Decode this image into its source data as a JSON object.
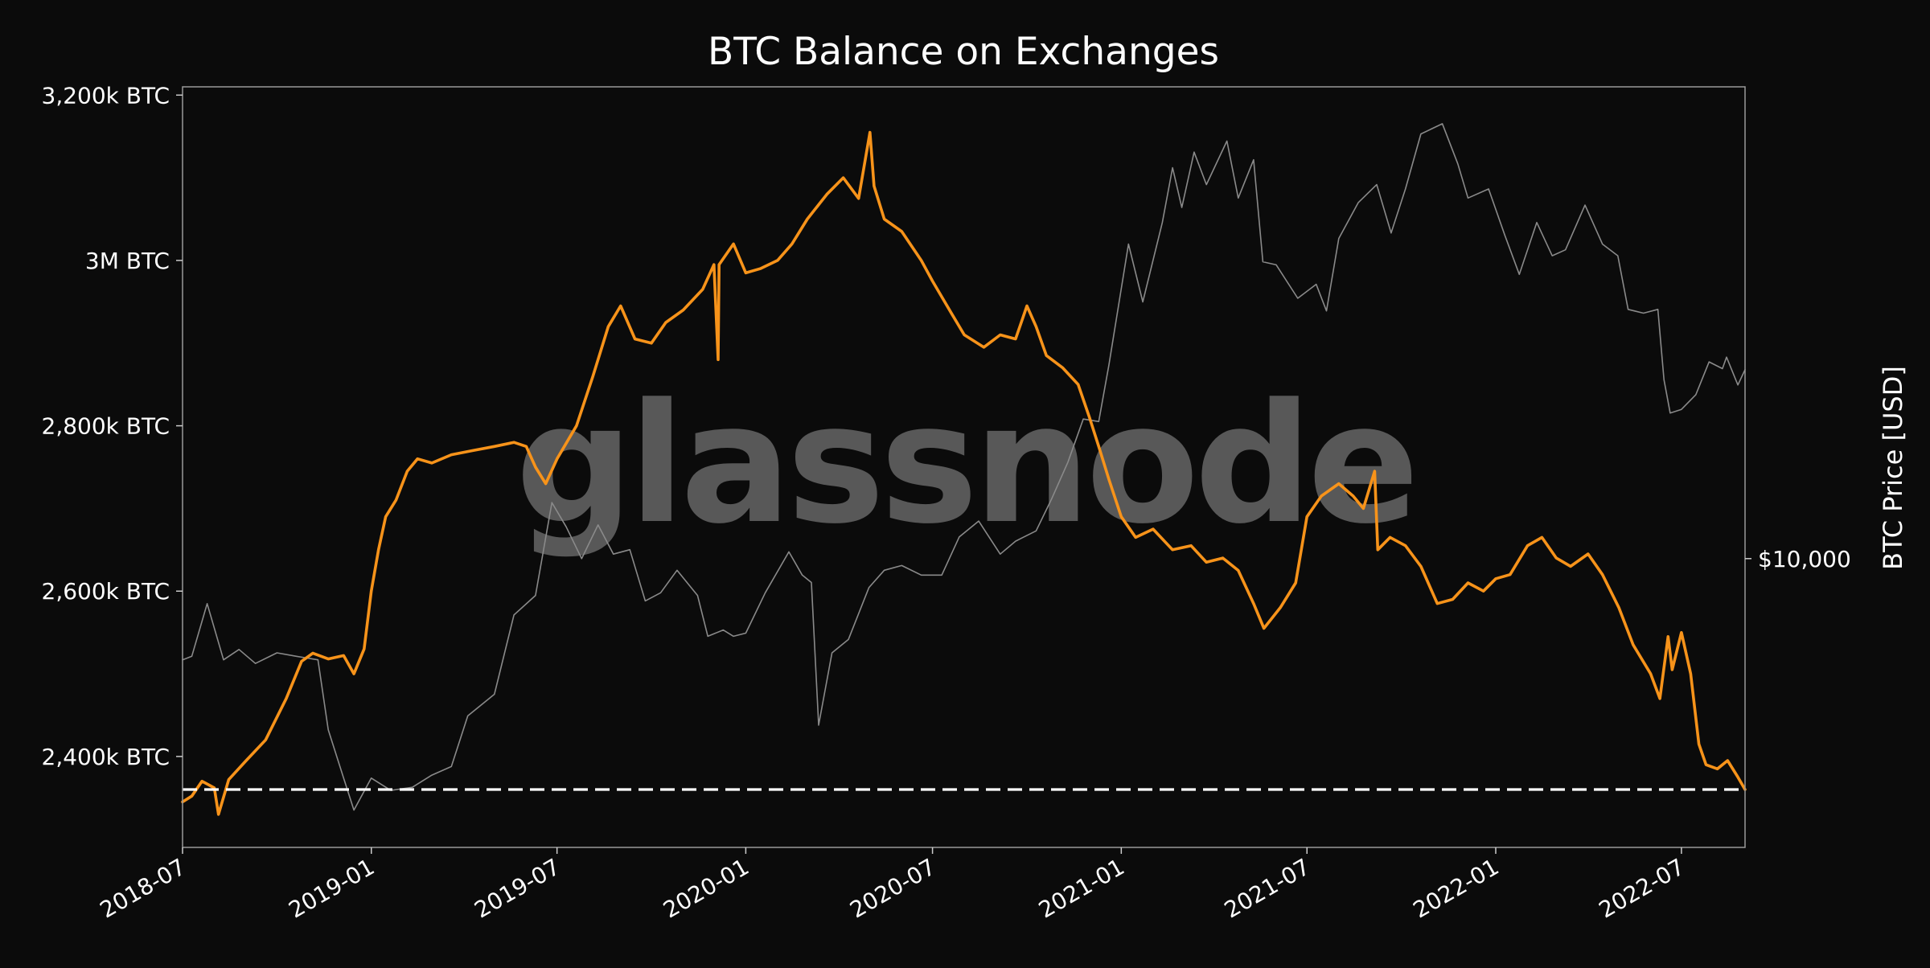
{
  "chart_data": {
    "type": "line",
    "title": "BTC Balance on Exchanges",
    "xlabel": "",
    "ylabel": "",
    "y2label": "BTC Price [USD]",
    "watermark": "glassnode",
    "background": "#0b0b0b",
    "xlim": [
      "2018-07-01",
      "2022-09-01"
    ],
    "ylim": [
      2290000,
      3210000
    ],
    "y2_scale": "log",
    "y2lim": [
      2800,
      80000
    ],
    "x_ticks": [
      {
        "date": "2018-07-01",
        "label": "2018-07"
      },
      {
        "date": "2019-01-01",
        "label": "2019-01"
      },
      {
        "date": "2019-07-01",
        "label": "2019-07"
      },
      {
        "date": "2020-01-01",
        "label": "2020-01"
      },
      {
        "date": "2020-07-01",
        "label": "2020-07"
      },
      {
        "date": "2021-01-01",
        "label": "2021-01"
      },
      {
        "date": "2021-07-01",
        "label": "2021-07"
      },
      {
        "date": "2022-01-01",
        "label": "2022-01"
      },
      {
        "date": "2022-07-01",
        "label": "2022-07"
      }
    ],
    "y_ticks": [
      {
        "value": 2400000,
        "label": "2,400k BTC"
      },
      {
        "value": 2600000,
        "label": "2,600k BTC"
      },
      {
        "value": 2800000,
        "label": "2,800k BTC"
      },
      {
        "value": 3000000,
        "label": "3M BTC"
      },
      {
        "value": 3200000,
        "label": "3,200k BTC"
      }
    ],
    "y2_ticks": [
      {
        "value": 10000,
        "label": "$10,000"
      }
    ],
    "reference_line": {
      "value": 2360000,
      "style": "dashed",
      "color": "#ffffff"
    },
    "series": [
      {
        "axis": "left",
        "color": "#f7931a",
        "points": [
          [
            "2018-07-01",
            2345000
          ],
          [
            "2018-07-10",
            2352000
          ],
          [
            "2018-07-20",
            2370000
          ],
          [
            "2018-08-01",
            2362000
          ],
          [
            "2018-08-05",
            2330000
          ],
          [
            "2018-08-15",
            2372000
          ],
          [
            "2018-09-01",
            2395000
          ],
          [
            "2018-09-20",
            2420000
          ],
          [
            "2018-10-10",
            2470000
          ],
          [
            "2018-10-25",
            2515000
          ],
          [
            "2018-11-05",
            2525000
          ],
          [
            "2018-11-20",
            2518000
          ],
          [
            "2018-12-05",
            2522000
          ],
          [
            "2018-12-15",
            2500000
          ],
          [
            "2018-12-25",
            2530000
          ],
          [
            "2019-01-01",
            2600000
          ],
          [
            "2019-01-08",
            2650000
          ],
          [
            "2019-01-15",
            2690000
          ],
          [
            "2019-01-25",
            2710000
          ],
          [
            "2019-02-05",
            2745000
          ],
          [
            "2019-02-15",
            2760000
          ],
          [
            "2019-03-01",
            2755000
          ],
          [
            "2019-03-20",
            2765000
          ],
          [
            "2019-04-10",
            2770000
          ],
          [
            "2019-05-01",
            2775000
          ],
          [
            "2019-05-20",
            2780000
          ],
          [
            "2019-06-01",
            2775000
          ],
          [
            "2019-06-10",
            2750000
          ],
          [
            "2019-06-20",
            2730000
          ],
          [
            "2019-07-01",
            2760000
          ],
          [
            "2019-07-20",
            2800000
          ],
          [
            "2019-08-05",
            2860000
          ],
          [
            "2019-08-20",
            2920000
          ],
          [
            "2019-09-01",
            2945000
          ],
          [
            "2019-09-15",
            2905000
          ],
          [
            "2019-10-01",
            2900000
          ],
          [
            "2019-10-15",
            2925000
          ],
          [
            "2019-11-01",
            2940000
          ],
          [
            "2019-11-20",
            2965000
          ],
          [
            "2019-12-01",
            2995000
          ],
          [
            "2019-12-05",
            2880000
          ],
          [
            "2019-12-06",
            2995000
          ],
          [
            "2019-12-20",
            3020000
          ],
          [
            "2020-01-01",
            2985000
          ],
          [
            "2020-01-15",
            2990000
          ],
          [
            "2020-02-01",
            3000000
          ],
          [
            "2020-02-15",
            3020000
          ],
          [
            "2020-03-01",
            3050000
          ],
          [
            "2020-03-20",
            3080000
          ],
          [
            "2020-04-05",
            3100000
          ],
          [
            "2020-04-20",
            3075000
          ],
          [
            "2020-05-01",
            3155000
          ],
          [
            "2020-05-05",
            3090000
          ],
          [
            "2020-05-15",
            3050000
          ],
          [
            "2020-06-01",
            3035000
          ],
          [
            "2020-06-20",
            3000000
          ],
          [
            "2020-07-01",
            2975000
          ],
          [
            "2020-07-20",
            2935000
          ],
          [
            "2020-08-01",
            2910000
          ],
          [
            "2020-08-20",
            2895000
          ],
          [
            "2020-09-05",
            2910000
          ],
          [
            "2020-09-20",
            2905000
          ],
          [
            "2020-10-01",
            2945000
          ],
          [
            "2020-10-10",
            2920000
          ],
          [
            "2020-10-20",
            2885000
          ],
          [
            "2020-11-05",
            2870000
          ],
          [
            "2020-11-20",
            2850000
          ],
          [
            "2020-12-01",
            2810000
          ],
          [
            "2020-12-10",
            2775000
          ],
          [
            "2020-12-20",
            2735000
          ],
          [
            "2021-01-01",
            2690000
          ],
          [
            "2021-01-15",
            2665000
          ],
          [
            "2021-02-01",
            2675000
          ],
          [
            "2021-02-20",
            2650000
          ],
          [
            "2021-03-10",
            2655000
          ],
          [
            "2021-03-25",
            2635000
          ],
          [
            "2021-04-10",
            2640000
          ],
          [
            "2021-04-25",
            2625000
          ],
          [
            "2021-05-10",
            2585000
          ],
          [
            "2021-05-20",
            2555000
          ],
          [
            "2021-06-05",
            2580000
          ],
          [
            "2021-06-20",
            2610000
          ],
          [
            "2021-07-01",
            2690000
          ],
          [
            "2021-07-15",
            2715000
          ],
          [
            "2021-08-01",
            2730000
          ],
          [
            "2021-08-15",
            2715000
          ],
          [
            "2021-08-25",
            2700000
          ],
          [
            "2021-09-05",
            2745000
          ],
          [
            "2021-09-08",
            2650000
          ],
          [
            "2021-09-20",
            2665000
          ],
          [
            "2021-10-05",
            2655000
          ],
          [
            "2021-10-20",
            2630000
          ],
          [
            "2021-11-05",
            2585000
          ],
          [
            "2021-11-20",
            2590000
          ],
          [
            "2021-12-05",
            2610000
          ],
          [
            "2021-12-20",
            2600000
          ],
          [
            "2022-01-01",
            2615000
          ],
          [
            "2022-01-15",
            2620000
          ],
          [
            "2022-02-01",
            2655000
          ],
          [
            "2022-02-15",
            2665000
          ],
          [
            "2022-03-01",
            2640000
          ],
          [
            "2022-03-15",
            2630000
          ],
          [
            "2022-04-01",
            2645000
          ],
          [
            "2022-04-15",
            2620000
          ],
          [
            "2022-05-01",
            2580000
          ],
          [
            "2022-05-15",
            2535000
          ],
          [
            "2022-06-01",
            2500000
          ],
          [
            "2022-06-10",
            2470000
          ],
          [
            "2022-06-18",
            2545000
          ],
          [
            "2022-06-22",
            2505000
          ],
          [
            "2022-07-01",
            2550000
          ],
          [
            "2022-07-10",
            2500000
          ],
          [
            "2022-07-18",
            2415000
          ],
          [
            "2022-07-25",
            2390000
          ],
          [
            "2022-08-05",
            2385000
          ],
          [
            "2022-08-15",
            2395000
          ],
          [
            "2022-08-25",
            2375000
          ],
          [
            "2022-09-01",
            2360000
          ]
        ]
      },
      {
        "axis": "right",
        "name": "BTC Price [USD]",
        "color": "#8a8a8a",
        "points": [
          [
            "2018-07-01",
            6400
          ],
          [
            "2018-07-10",
            6500
          ],
          [
            "2018-07-25",
            8200
          ],
          [
            "2018-08-10",
            6400
          ],
          [
            "2018-08-25",
            6700
          ],
          [
            "2018-09-10",
            6300
          ],
          [
            "2018-10-01",
            6600
          ],
          [
            "2018-10-20",
            6500
          ],
          [
            "2018-11-10",
            6400
          ],
          [
            "2018-11-20",
            4700
          ],
          [
            "2018-12-05",
            3800
          ],
          [
            "2018-12-15",
            3300
          ],
          [
            "2019-01-01",
            3800
          ],
          [
            "2019-01-20",
            3600
          ],
          [
            "2019-02-10",
            3650
          ],
          [
            "2019-03-01",
            3850
          ],
          [
            "2019-03-20",
            4000
          ],
          [
            "2019-04-05",
            5000
          ],
          [
            "2019-05-01",
            5500
          ],
          [
            "2019-05-20",
            7800
          ],
          [
            "2019-06-10",
            8500
          ],
          [
            "2019-06-26",
            12800
          ],
          [
            "2019-07-10",
            11500
          ],
          [
            "2019-07-25",
            10000
          ],
          [
            "2019-08-10",
            11600
          ],
          [
            "2019-08-25",
            10200
          ],
          [
            "2019-09-10",
            10400
          ],
          [
            "2019-09-25",
            8300
          ],
          [
            "2019-10-10",
            8600
          ],
          [
            "2019-10-26",
            9500
          ],
          [
            "2019-11-15",
            8500
          ],
          [
            "2019-11-25",
            7100
          ],
          [
            "2019-12-10",
            7300
          ],
          [
            "2019-12-20",
            7100
          ],
          [
            "2020-01-01",
            7200
          ],
          [
            "2020-01-20",
            8600
          ],
          [
            "2020-02-12",
            10300
          ],
          [
            "2020-02-25",
            9300
          ],
          [
            "2020-03-05",
            9000
          ],
          [
            "2020-03-12",
            4800
          ],
          [
            "2020-03-25",
            6600
          ],
          [
            "2020-04-10",
            7000
          ],
          [
            "2020-04-30",
            8800
          ],
          [
            "2020-05-15",
            9500
          ],
          [
            "2020-06-01",
            9700
          ],
          [
            "2020-06-20",
            9300
          ],
          [
            "2020-07-10",
            9300
          ],
          [
            "2020-07-27",
            11000
          ],
          [
            "2020-08-15",
            11800
          ],
          [
            "2020-09-05",
            10200
          ],
          [
            "2020-09-20",
            10800
          ],
          [
            "2020-10-10",
            11300
          ],
          [
            "2020-10-25",
            13000
          ],
          [
            "2020-11-10",
            15300
          ],
          [
            "2020-11-25",
            18500
          ],
          [
            "2020-12-10",
            18300
          ],
          [
            "2020-12-20",
            23500
          ],
          [
            "2021-01-08",
            40000
          ],
          [
            "2021-01-22",
            31000
          ],
          [
            "2021-02-10",
            44000
          ],
          [
            "2021-02-20",
            56000
          ],
          [
            "2021-03-01",
            47000
          ],
          [
            "2021-03-13",
            60000
          ],
          [
            "2021-03-25",
            52000
          ],
          [
            "2021-04-14",
            63000
          ],
          [
            "2021-04-25",
            49000
          ],
          [
            "2021-05-10",
            58000
          ],
          [
            "2021-05-19",
            37000
          ],
          [
            "2021-06-01",
            36500
          ],
          [
            "2021-06-22",
            31500
          ],
          [
            "2021-07-10",
            33500
          ],
          [
            "2021-07-20",
            29800
          ],
          [
            "2021-08-01",
            41000
          ],
          [
            "2021-08-20",
            48000
          ],
          [
            "2021-09-07",
            52000
          ],
          [
            "2021-09-21",
            42000
          ],
          [
            "2021-10-05",
            51000
          ],
          [
            "2021-10-20",
            65000
          ],
          [
            "2021-11-10",
            68000
          ],
          [
            "2021-11-25",
            57000
          ],
          [
            "2021-12-05",
            49000
          ],
          [
            "2021-12-25",
            51000
          ],
          [
            "2022-01-10",
            41500
          ],
          [
            "2022-01-24",
            35000
          ],
          [
            "2022-02-10",
            44000
          ],
          [
            "2022-02-25",
            38000
          ],
          [
            "2022-03-10",
            39000
          ],
          [
            "2022-03-29",
            47500
          ],
          [
            "2022-04-15",
            40000
          ],
          [
            "2022-04-30",
            38000
          ],
          [
            "2022-05-10",
            30000
          ],
          [
            "2022-05-25",
            29500
          ],
          [
            "2022-06-08",
            30000
          ],
          [
            "2022-06-14",
            22000
          ],
          [
            "2022-06-20",
            19000
          ],
          [
            "2022-07-01",
            19300
          ],
          [
            "2022-07-15",
            20600
          ],
          [
            "2022-07-28",
            23800
          ],
          [
            "2022-08-10",
            23100
          ],
          [
            "2022-08-14",
            24300
          ],
          [
            "2022-08-25",
            21500
          ],
          [
            "2022-09-01",
            23000
          ]
        ]
      }
    ]
  }
}
